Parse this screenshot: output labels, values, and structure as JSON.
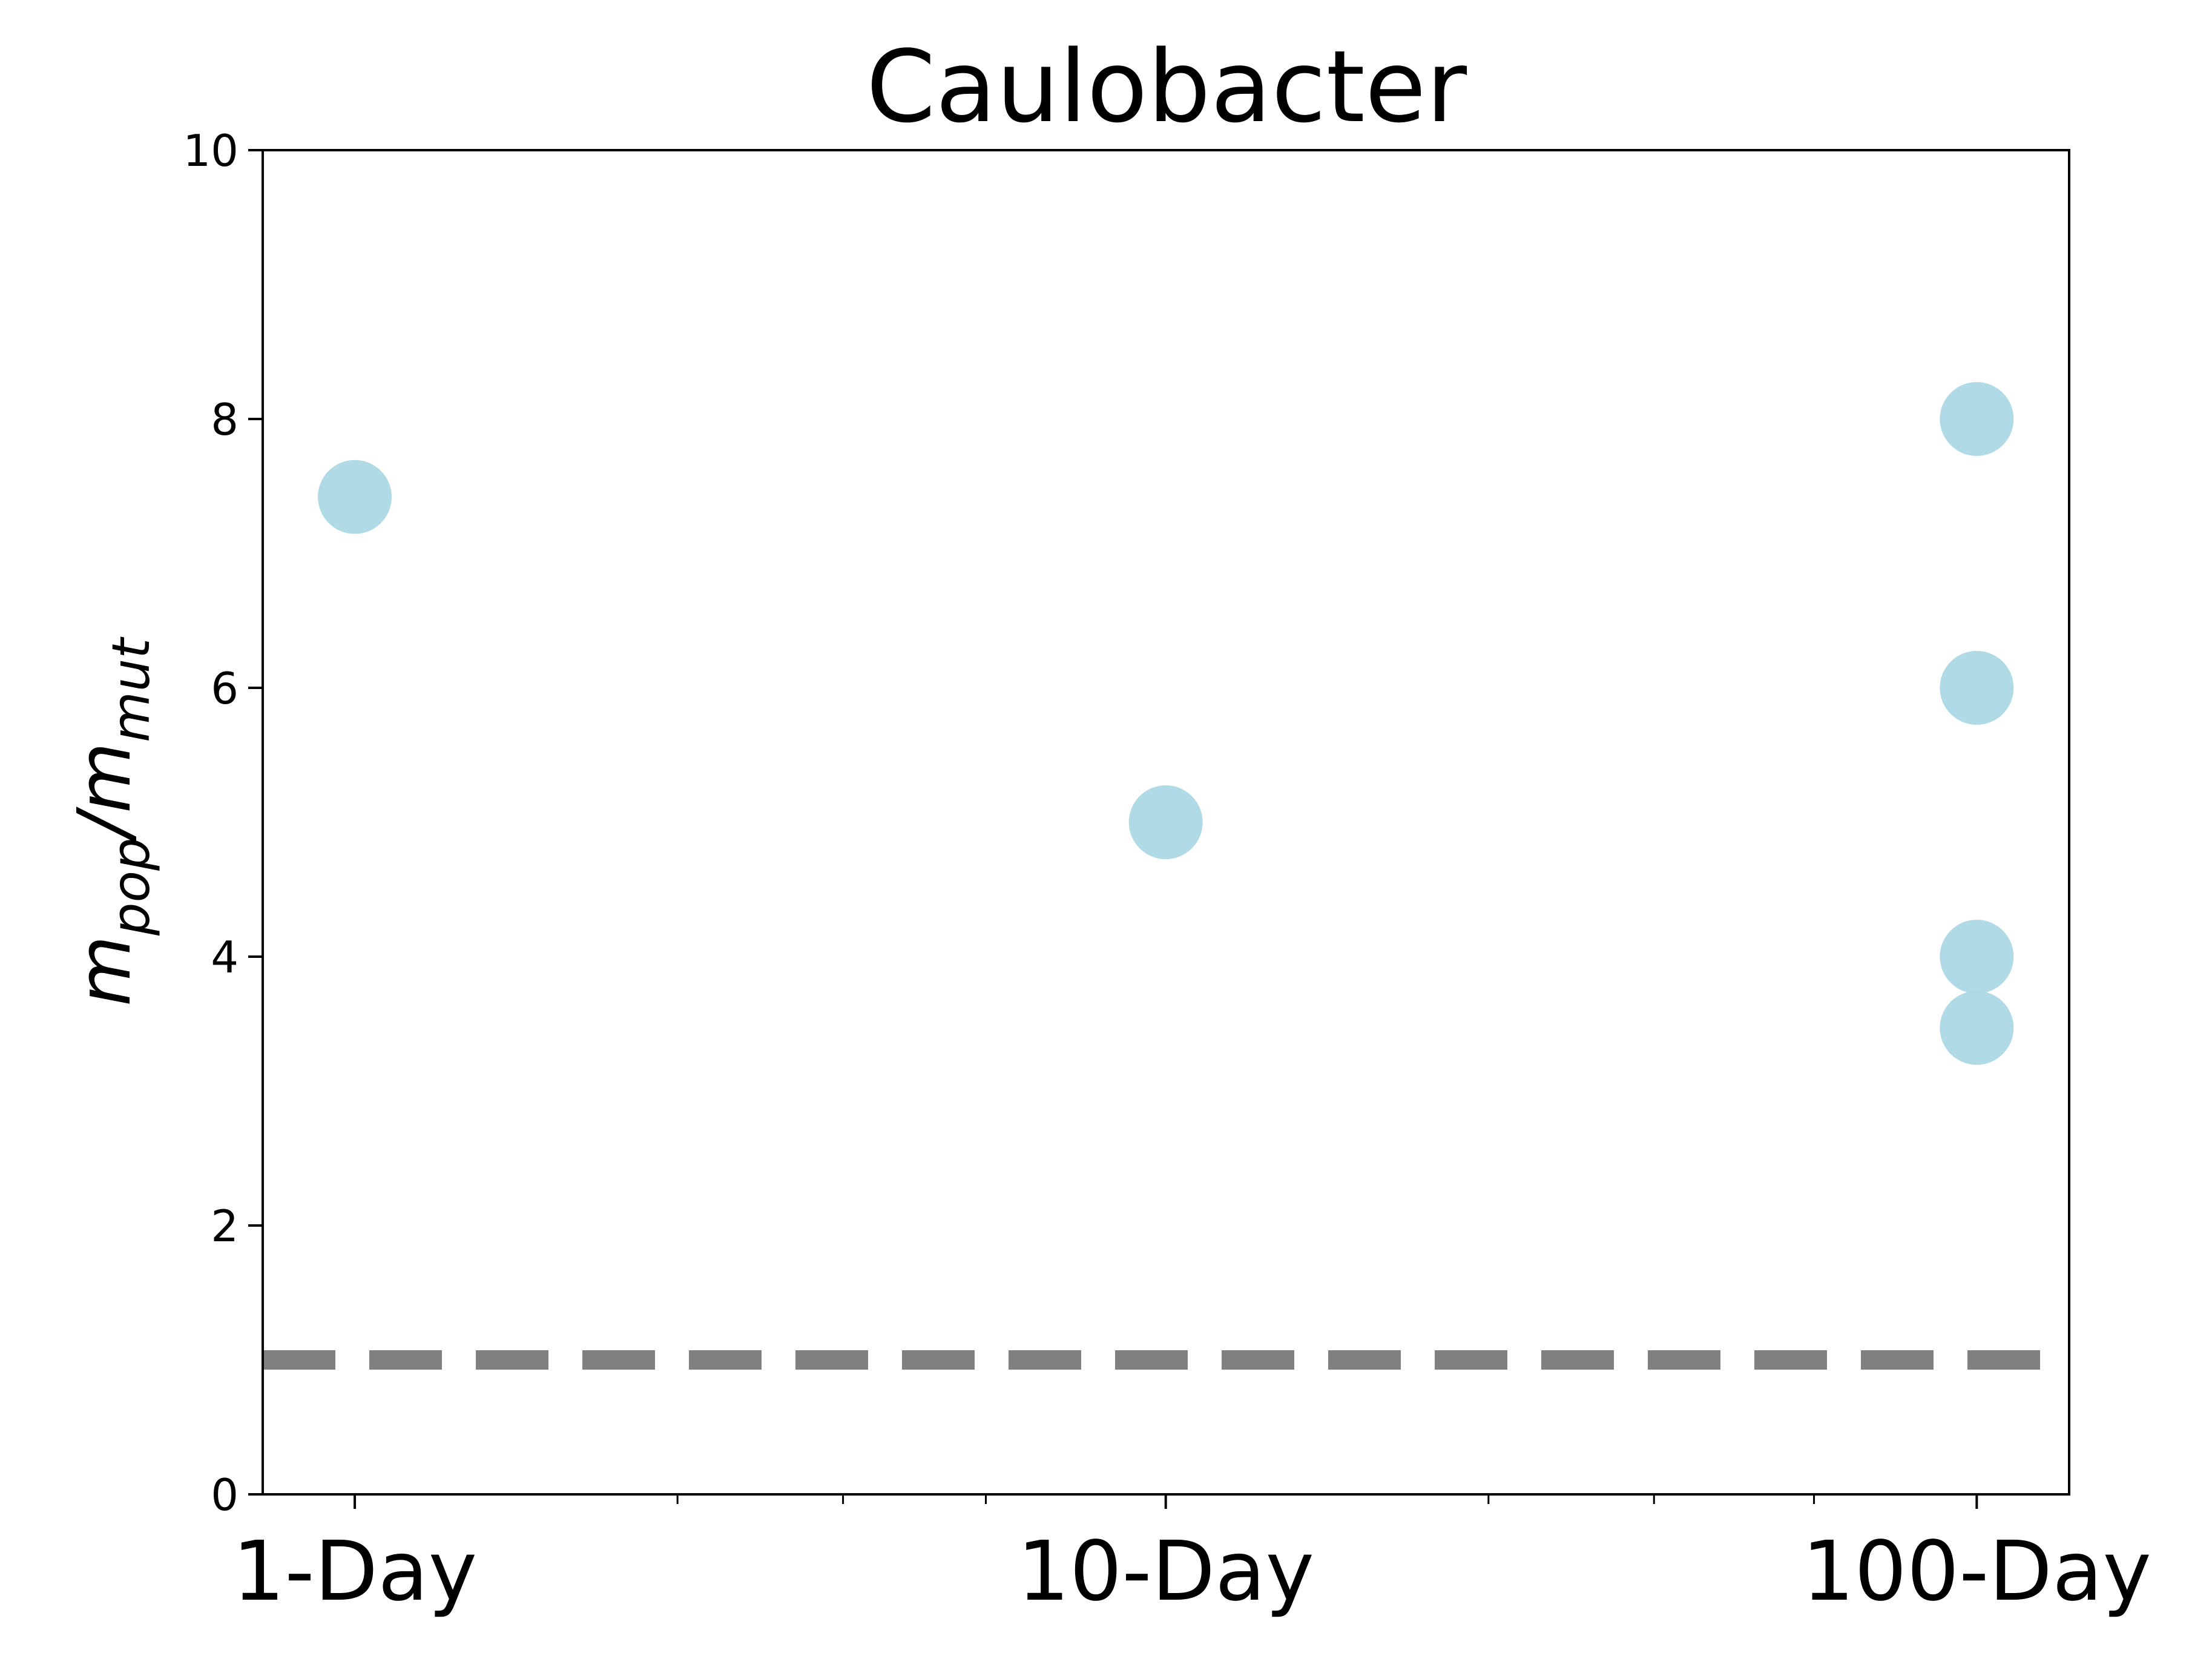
{
  "chart_data": {
    "type": "scatter",
    "title": "Caulobacter",
    "xlabel": "",
    "ylabel": {
      "base1": "m",
      "sub1": "pop",
      "sep": "/",
      "base2": "m",
      "sub2": "mut"
    },
    "xscale": "log",
    "xlim": [
      0.77,
      130
    ],
    "ylim": [
      0,
      10
    ],
    "xticks": [
      {
        "value": 1,
        "label": "1-Day"
      },
      {
        "value": 10,
        "label": "10-Day"
      },
      {
        "value": 100,
        "label": "100-Day"
      }
    ],
    "x_minor_ticks": [
      2.5,
      4,
      6,
      25,
      40,
      63
    ],
    "yticks": [
      0,
      2,
      4,
      6,
      8,
      10
    ],
    "points": [
      {
        "x": 1,
        "y": 7.42
      },
      {
        "x": 10,
        "y": 5.0
      },
      {
        "x": 100,
        "y": 8.0
      },
      {
        "x": 100,
        "y": 6.0
      },
      {
        "x": 100,
        "y": 4.0
      },
      {
        "x": 100,
        "y": 3.47
      }
    ],
    "reference_line": {
      "y": 1.0,
      "style": "dashed"
    },
    "grid": false,
    "colors": {
      "points": "#add8e6",
      "reference_line": "#808080",
      "axes": "#000000"
    }
  }
}
